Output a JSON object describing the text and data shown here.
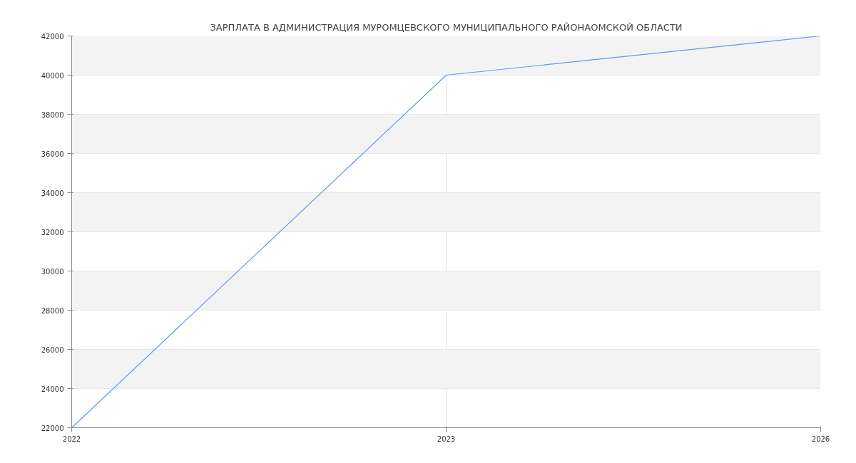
{
  "chart_data": {
    "type": "line",
    "title": "ЗАРПЛАТА В АДМИНИСТРАЦИЯ МУРОМЦЕВСКОГО МУНИЦИПАЛЬНОГО РАЙОНАОМСКОЙ ОБЛАСТИ",
    "categories": [
      "2022",
      "2023",
      "2026"
    ],
    "series": [
      {
        "color": "#6495ed",
        "values": [
          22000,
          40000,
          42000
        ]
      }
    ],
    "ylim": [
      22000,
      42000
    ],
    "yticks": [
      22000,
      24000,
      26000,
      28000,
      30000,
      32000,
      34000,
      36000,
      38000,
      40000,
      42000
    ],
    "grid": true,
    "marker": "none",
    "line_style": "solid"
  }
}
